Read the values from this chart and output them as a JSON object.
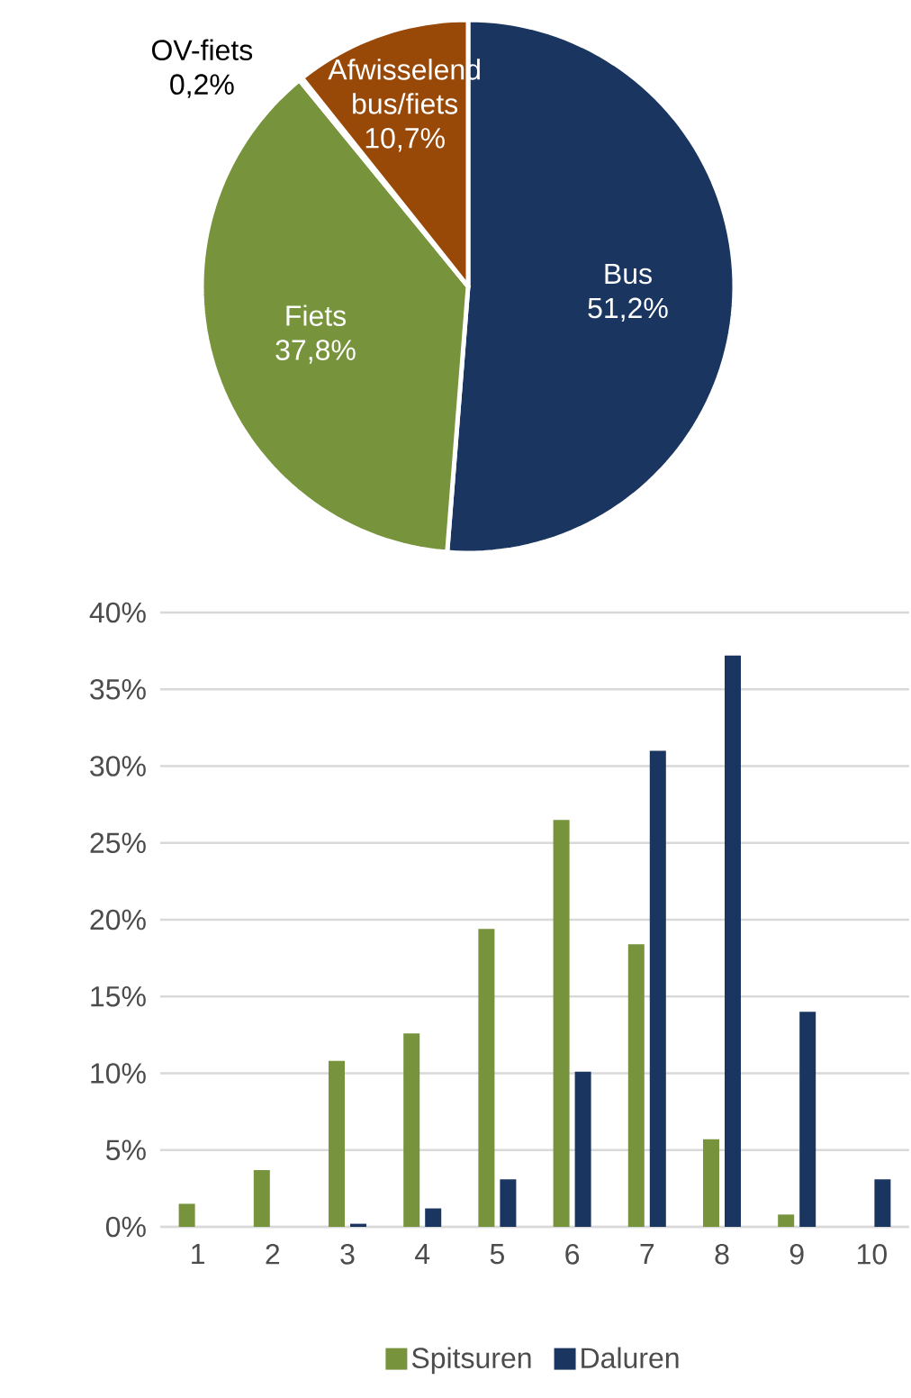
{
  "chart_data": [
    {
      "type": "pie",
      "categories": [
        "Bus",
        "Fiets",
        "OV-fiets",
        "Afwisselend bus/fiets"
      ],
      "values": [
        51.2,
        37.8,
        0.2,
        10.7
      ],
      "colors": [
        "#1a3660",
        "#77933c",
        "#7f7f7f",
        "#984807"
      ],
      "value_labels": [
        "51,2%",
        "37,8%",
        "0,2%",
        "10,7%"
      ]
    },
    {
      "type": "bar",
      "categories": [
        "1",
        "2",
        "3",
        "4",
        "5",
        "6",
        "7",
        "8",
        "9",
        "10"
      ],
      "series": [
        {
          "name": "Spitsuren",
          "color": "#77933c",
          "values": [
            1.5,
            3.7,
            10.8,
            12.6,
            19.4,
            26.5,
            18.4,
            5.7,
            0.8,
            0
          ]
        },
        {
          "name": "Daluren",
          "color": "#1a3660",
          "values": [
            0,
            0,
            0.2,
            1.2,
            3.1,
            10.1,
            31.0,
            37.2,
            14.0,
            3.1
          ]
        }
      ],
      "ylim": [
        0,
        40
      ],
      "yticks": [
        {
          "value": 0,
          "label": "0%"
        },
        {
          "value": 5,
          "label": "5%"
        },
        {
          "value": 10,
          "label": "10%"
        },
        {
          "value": 15,
          "label": "15%"
        },
        {
          "value": 20,
          "label": "20%"
        },
        {
          "value": 25,
          "label": "25%"
        },
        {
          "value": 30,
          "label": "30%"
        },
        {
          "value": 35,
          "label": "35%"
        },
        {
          "value": 40,
          "label": "40%"
        }
      ],
      "grid": "y",
      "legend": "bottom"
    }
  ]
}
